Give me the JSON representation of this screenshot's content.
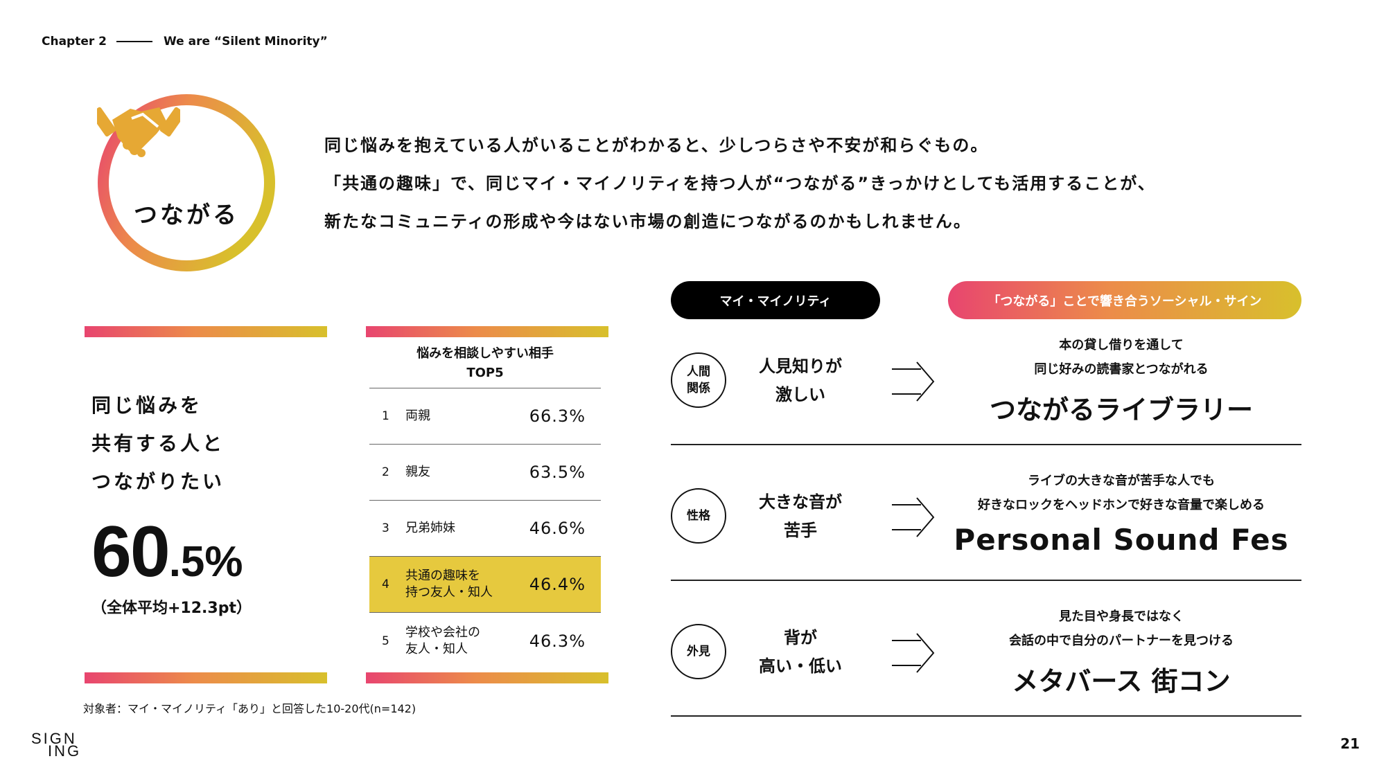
{
  "header": {
    "chapter": "Chapter 2",
    "title": "We are “Silent Minority”"
  },
  "badge": {
    "label": "つながる",
    "icon": "handshake-icon"
  },
  "intro": {
    "lines": [
      "同じ悩みを抱えている人がいることがわかると、少しつらさや不安が和らぐもの。",
      "「共通の趣味」で、同じマイ・マイノリティを持つ人が“つながる”きっかけとしても活用することが、",
      "新たなコミュニティの形成や今はない市場の創造につながるのかもしれません。"
    ]
  },
  "left_stat": {
    "lines": [
      "同じ悩みを",
      "共有する人と",
      "つながりたい"
    ],
    "value_int": "60",
    "value_dec": ".5%",
    "sub": "（全体平均+12.3pt）"
  },
  "top5": {
    "title_l1": "悩みを相談しやすい相手",
    "title_l2": "TOP5",
    "rows": [
      {
        "rank": "1",
        "label_l1": "両親",
        "label_l2": "",
        "pct": "66.3%"
      },
      {
        "rank": "2",
        "label_l1": "親友",
        "label_l2": "",
        "pct": "63.5%"
      },
      {
        "rank": "3",
        "label_l1": "兄弟姉妹",
        "label_l2": "",
        "pct": "46.6%"
      },
      {
        "rank": "4",
        "label_l1": "共通の趣味を",
        "label_l2": "持つ友人・知人",
        "pct": "46.4%"
      },
      {
        "rank": "5",
        "label_l1": "学校や会社の",
        "label_l2": "友人・知人",
        "pct": "46.3%"
      }
    ]
  },
  "note": "対象者：マイ・マイノリティ「あり」と回答した10-20代(n=142)",
  "pills": {
    "left": "マイ・マイノリティ",
    "right": "「つながる」ことで響き合うソーシャル・サイン"
  },
  "rows": [
    {
      "tag_l1": "人間",
      "tag_l2": "関係",
      "prob_l1": "人見知りが",
      "prob_l2": "激しい",
      "sub_l1": "本の貸し借りを通して",
      "sub_l2": "同じ好みの読書家とつながれる",
      "name": "つながるライブラリー"
    },
    {
      "tag_l1": "性格",
      "tag_l2": "",
      "prob_l1": "大きな音が",
      "prob_l2": "苦手",
      "sub_l1": "ライブの大きな音が苦手な人でも",
      "sub_l2": "好きなロックをヘッドホンで好きな音量で楽しめる",
      "name": "Personal Sound Fes"
    },
    {
      "tag_l1": "外見",
      "tag_l2": "",
      "prob_l1": "背が",
      "prob_l2": "高い・低い",
      "sub_l1": "見た目や身長ではなく",
      "sub_l2": "会話の中で自分のパートナーを見つける",
      "name": "メタバース 街コン"
    }
  ],
  "logo": {
    "l1": "SIGN",
    "l2": "ING"
  },
  "page_number": "21",
  "colors": {
    "grad_start": "#e8456f",
    "grad_mid": "#ec8b4a",
    "grad_end": "#d8c02c",
    "highlight": "#e6c93e"
  }
}
